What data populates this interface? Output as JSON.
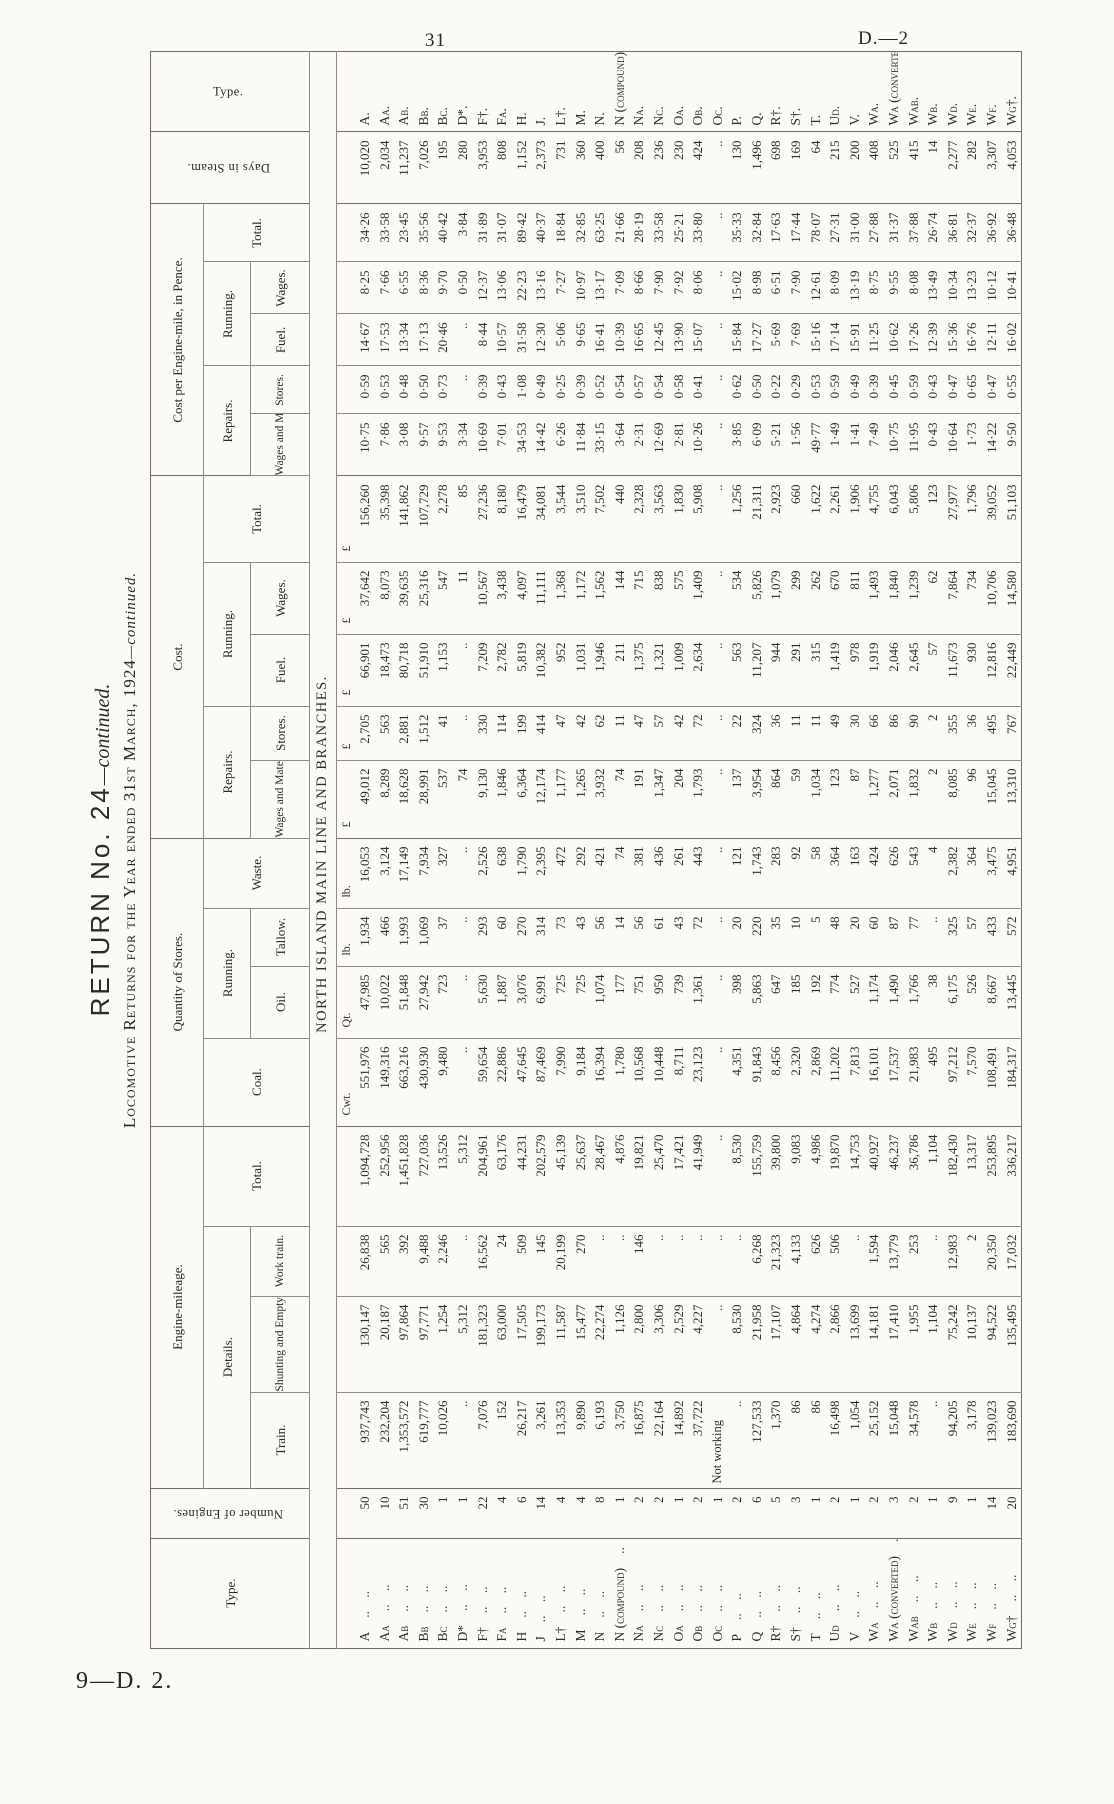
{
  "page": {
    "number": "31",
    "doc_ref": "D.—2",
    "footer": "9—D. 2."
  },
  "title": {
    "line1_main": "RETURN No. 24",
    "line1_cont": "—continued.",
    "line2_main": "Locomotive Returns for the Year ended 31st March, 1924",
    "line2_cont": "—continued.",
    "section": "NORTH ISLAND MAIN LINE AND BRANCHES."
  },
  "headers": {
    "type": "Type.",
    "engines": "Number of Engines.",
    "mileage": "Engine-mileage.",
    "details": "Details.",
    "train": "Train.",
    "shunting": "Shunting and Empty.",
    "work_train": "Work train.",
    "total": "Total.",
    "stores_qty": "Quantity of Stores.",
    "coal": "Coal.",
    "running": "Running.",
    "oil": "Oil.",
    "tallow": "Tallow.",
    "waste": "Waste.",
    "cost": "Cost.",
    "repairs": "Repairs.",
    "wages_material": "Wages and Material.",
    "stores": "Stores.",
    "fuel": "Fuel.",
    "wages": "Wages.",
    "pence": "Cost per Engine-mile, in Pence.",
    "days": "Days in Steam."
  },
  "leaders": ".. ..",
  "column_keys": [
    "type",
    "engines",
    "train",
    "shunting_empty",
    "work_train",
    "total_mileage",
    "coal",
    "oil",
    "tallow",
    "waste",
    "repairs_wages_material",
    "repairs_stores",
    "fuel",
    "wages",
    "total_cost",
    "pence_wages_material",
    "pence_stores",
    "pence_fuel",
    "pence_wages",
    "pence_total",
    "days_in_steam",
    "type_right"
  ],
  "units": [
    "",
    "",
    "",
    "",
    "",
    "",
    "Cwt.",
    "Qt.",
    "lb.",
    "lb.",
    "£",
    "£",
    "£",
    "£",
    "£",
    "",
    "",
    "",
    "",
    "",
    "",
    ""
  ],
  "rows": [
    [
      "A",
      "50",
      "937,743",
      "130,147",
      "26,838",
      "1,094,728",
      "551,976",
      "47,985",
      "1,934",
      "16,053",
      "49,012",
      "2,705",
      "66,901",
      "37,642",
      "156,260",
      "10·75",
      "0·59",
      "14·67",
      "8·25",
      "34·26",
      "10,020",
      "A."
    ],
    [
      "Aa",
      "10",
      "232,204",
      "20,187",
      "565",
      "252,956",
      "149,316",
      "10,022",
      "466",
      "3,124",
      "8,289",
      "563",
      "18,473",
      "8,073",
      "35,398",
      "7·86",
      "0·53",
      "17·53",
      "7·66",
      "33·58",
      "2,034",
      "Aa."
    ],
    [
      "Ab",
      "51",
      "1,353,572",
      "97,864",
      "392",
      "1,451,828",
      "663,216",
      "51,848",
      "1,993",
      "17,149",
      "18,628",
      "2,881",
      "80,718",
      "39,635",
      "141,862",
      "3·08",
      "0·48",
      "13·34",
      "6·55",
      "23·45",
      "11,237",
      "Ab."
    ],
    [
      "Bb",
      "30",
      "619,777",
      "97,771",
      "9,488",
      "727,036",
      "430,930",
      "27,942",
      "1,069",
      "7,934",
      "28,991",
      "1,512",
      "51,910",
      "25,316",
      "107,729",
      "9·57",
      "0·50",
      "17·13",
      "8·36",
      "35·56",
      "7,026",
      "Bb."
    ],
    [
      "Bc",
      "1",
      "10,026",
      "1,254",
      "2,246",
      "13,526",
      "9,480",
      "723",
      "37",
      "327",
      "537",
      "41",
      "1,153",
      "547",
      "2,278",
      "9·53",
      "0·73",
      "20·46",
      "9·70",
      "40·42",
      "195",
      "Bc."
    ],
    [
      "D*",
      "1",
      "..",
      "5,312",
      "..",
      "5,312",
      "..",
      "..",
      "..",
      "..",
      "74",
      "..",
      "..",
      "11",
      "85",
      "3·34",
      "..",
      "..",
      "0·50",
      "3·84",
      "280",
      "D*."
    ],
    [
      "F†",
      "22",
      "7,076",
      "181,323",
      "16,562",
      "204,961",
      "59,654",
      "5,630",
      "293",
      "2,526",
      "9,130",
      "330",
      "7,209",
      "10,567",
      "27,236",
      "10·69",
      "0·39",
      "8·44",
      "12·37",
      "31·89",
      "3,953",
      "F†."
    ],
    [
      "Fa",
      "4",
      "152",
      "63,000",
      "24",
      "63,176",
      "22,886",
      "1,887",
      "60",
      "638",
      "1,846",
      "114",
      "2,782",
      "3,438",
      "8,180",
      "7·01",
      "0·43",
      "10·57",
      "13·06",
      "31·07",
      "808",
      "Fa."
    ],
    [
      "H",
      "6",
      "26,217",
      "17,505",
      "509",
      "44,231",
      "47,645",
      "3,076",
      "270",
      "1,790",
      "6,364",
      "199",
      "5,819",
      "4,097",
      "16,479",
      "34·53",
      "1·08",
      "31·58",
      "22·23",
      "89·42",
      "1,152",
      "H."
    ],
    [
      "J",
      "14",
      "3,261",
      "199,173",
      "145",
      "202,579",
      "87,469",
      "6,991",
      "314",
      "2,395",
      "12,174",
      "414",
      "10,382",
      "11,111",
      "34,081",
      "14·42",
      "0·49",
      "12·30",
      "13·16",
      "40·37",
      "2,373",
      "J."
    ],
    [
      "L†",
      "4",
      "13,353",
      "11,587",
      "20,199",
      "45,139",
      "7,990",
      "725",
      "73",
      "472",
      "1,177",
      "47",
      "952",
      "1,368",
      "3,544",
      "6·26",
      "0·25",
      "5·06",
      "7·27",
      "18·84",
      "731",
      "L†."
    ],
    [
      "M",
      "4",
      "9,890",
      "15,477",
      "270",
      "25,637",
      "9,184",
      "725",
      "43",
      "292",
      "1,265",
      "42",
      "1,031",
      "1,172",
      "3,510",
      "11·84",
      "0·39",
      "9·65",
      "10·97",
      "32·85",
      "360",
      "M."
    ],
    [
      "N",
      "8",
      "6,193",
      "22,274",
      "..",
      "28,467",
      "16,394",
      "1,074",
      "56",
      "421",
      "3,932",
      "62",
      "1,946",
      "1,562",
      "7,502",
      "33·15",
      "0·52",
      "16·41",
      "13·17",
      "63·25",
      "400",
      "N."
    ],
    [
      "N (compound)",
      "1",
      "3,750",
      "1,126",
      "..",
      "4,876",
      "1,780",
      "177",
      "14",
      "74",
      "74",
      "11",
      "211",
      "144",
      "440",
      "3·64",
      "0·54",
      "10·39",
      "7·09",
      "21·66",
      "56",
      "N (compound)."
    ],
    [
      "Na",
      "2",
      "16,875",
      "2,800",
      "146",
      "19,821",
      "10,568",
      "751",
      "56",
      "381",
      "191",
      "47",
      "1,375",
      "715",
      "2,328",
      "2·31",
      "0·57",
      "16·65",
      "8·66",
      "28·19",
      "208",
      "Na."
    ],
    [
      "Nc",
      "2",
      "22,164",
      "3,306",
      "..",
      "25,470",
      "10,448",
      "950",
      "61",
      "436",
      "1,347",
      "57",
      "1,321",
      "838",
      "3,563",
      "12·69",
      "0·54",
      "12·45",
      "7·90",
      "33·58",
      "236",
      "Nc."
    ],
    [
      "Oa",
      "1",
      "14,892",
      "2,529",
      "..",
      "17,421",
      "8,711",
      "739",
      "43",
      "261",
      "204",
      "42",
      "1,009",
      "575",
      "1,830",
      "2·81",
      "0·58",
      "13·90",
      "7·92",
      "25·21",
      "230",
      "Oa."
    ],
    [
      "Ob",
      "2",
      "37,722",
      "4,227",
      "..",
      "41,949",
      "23,123",
      "1,361",
      "72",
      "443",
      "1,793",
      "72",
      "2,634",
      "1,409",
      "5,908",
      "10·26",
      "0·41",
      "15·07",
      "8·06",
      "33·80",
      "424",
      "Ob."
    ],
    [
      "Oc",
      "1",
      "Not working",
      "..",
      "..",
      "..",
      "..",
      "..",
      "..",
      "..",
      "..",
      "..",
      "..",
      "..",
      "..",
      "..",
      "..",
      "..",
      "..",
      "..",
      "..",
      "Oc."
    ],
    [
      "P",
      "2",
      "..",
      "8,530",
      "..",
      "8,530",
      "4,351",
      "398",
      "20",
      "121",
      "137",
      "22",
      "563",
      "534",
      "1,256",
      "3·85",
      "0·62",
      "15·84",
      "15·02",
      "35·33",
      "130",
      "P."
    ],
    [
      "Q",
      "6",
      "127,533",
      "21,958",
      "6,268",
      "155,759",
      "91,843",
      "5,863",
      "220",
      "1,743",
      "3,954",
      "324",
      "11,207",
      "5,826",
      "21,311",
      "6·09",
      "0·50",
      "17·27",
      "8·98",
      "32·84",
      "1,496",
      "Q."
    ],
    [
      "R†",
      "5",
      "1,370",
      "17,107",
      "21,323",
      "39,800",
      "8,456",
      "647",
      "35",
      "283",
      "864",
      "36",
      "944",
      "1,079",
      "2,923",
      "5·21",
      "0·22",
      "5·69",
      "6·51",
      "17·63",
      "698",
      "R†."
    ],
    [
      "S†",
      "3",
      "86",
      "4,864",
      "4,133",
      "9,083",
      "2,320",
      "185",
      "10",
      "92",
      "59",
      "11",
      "291",
      "299",
      "660",
      "1·56",
      "0·29",
      "7·69",
      "7·90",
      "17·44",
      "169",
      "S†."
    ],
    [
      "T",
      "1",
      "86",
      "4,274",
      "626",
      "4,986",
      "2,869",
      "192",
      "5",
      "58",
      "1,034",
      "11",
      "315",
      "262",
      "1,622",
      "49·77",
      "0·53",
      "15·16",
      "12·61",
      "78·07",
      "64",
      "T."
    ],
    [
      "Ud",
      "2",
      "16,498",
      "2,866",
      "506",
      "19,870",
      "11,202",
      "774",
      "48",
      "364",
      "123",
      "49",
      "1,419",
      "670",
      "2,261",
      "1·49",
      "0·59",
      "17·14",
      "8·09",
      "27·31",
      "215",
      "Ud."
    ],
    [
      "V",
      "1",
      "1,054",
      "13,699",
      "..",
      "14,753",
      "7,813",
      "527",
      "20",
      "163",
      "87",
      "30",
      "978",
      "811",
      "1,906",
      "1·41",
      "0·49",
      "15·91",
      "13·19",
      "31·00",
      "200",
      "V."
    ],
    [
      "Wa",
      "2",
      "25,152",
      "14,181",
      "1,594",
      "40,927",
      "16,101",
      "1,174",
      "60",
      "424",
      "1,277",
      "66",
      "1,919",
      "1,493",
      "4,755",
      "7·49",
      "0·39",
      "11·25",
      "8·75",
      "27·88",
      "408",
      "Wa."
    ],
    [
      "Wa (converted)",
      "3",
      "15,048",
      "17,410",
      "13,779",
      "46,237",
      "17,537",
      "1,490",
      "87",
      "626",
      "2,071",
      "86",
      "2,046",
      "1,840",
      "6,043",
      "10·75",
      "0·45",
      "10·62",
      "9·55",
      "31·37",
      "525",
      "Wa (converted)."
    ],
    [
      "Wab",
      "2",
      "34,578",
      "1,955",
      "253",
      "36,786",
      "21,983",
      "1,766",
      "77",
      "543",
      "1,832",
      "90",
      "2,645",
      "1,239",
      "5,806",
      "11·95",
      "0·59",
      "17·26",
      "8·08",
      "37·88",
      "415",
      "Wab."
    ],
    [
      "Wb",
      "1",
      "..",
      "1,104",
      "..",
      "1,104",
      "495",
      "38",
      "..",
      "4",
      "2",
      "2",
      "57",
      "62",
      "123",
      "0·43",
      "0·43",
      "12·39",
      "13·49",
      "26·74",
      "14",
      "Wb."
    ],
    [
      "Wd",
      "9",
      "94,205",
      "75,242",
      "12,983",
      "182,430",
      "97,212",
      "6,175",
      "325",
      "2,382",
      "8,085",
      "355",
      "11,673",
      "7,864",
      "27,977",
      "10·64",
      "0·47",
      "15·36",
      "10·34",
      "36·81",
      "2,277",
      "Wd."
    ],
    [
      "We",
      "1",
      "3,178",
      "10,137",
      "2",
      "13,317",
      "7,570",
      "526",
      "57",
      "364",
      "96",
      "36",
      "930",
      "734",
      "1,796",
      "1·73",
      "0·65",
      "16·76",
      "13·23",
      "32·37",
      "282",
      "We."
    ],
    [
      "Wf",
      "14",
      "139,023",
      "94,522",
      "20,350",
      "253,895",
      "108,491",
      "8,667",
      "433",
      "3,475",
      "15,045",
      "495",
      "12,816",
      "10,706",
      "39,052",
      "14·22",
      "0·47",
      "12·11",
      "10·12",
      "36·92",
      "3,307",
      "Wf."
    ],
    [
      "Wg†",
      "20",
      "183,690",
      "135,495",
      "17,032",
      "336,217",
      "184,317",
      "13,445",
      "572",
      "4,951",
      "13,310",
      "767",
      "22,449",
      "14,580",
      "51,103",
      "9·50",
      "0·55",
      "16·02",
      "10·41",
      "36·48",
      "4,053",
      "Wg†."
    ]
  ]
}
